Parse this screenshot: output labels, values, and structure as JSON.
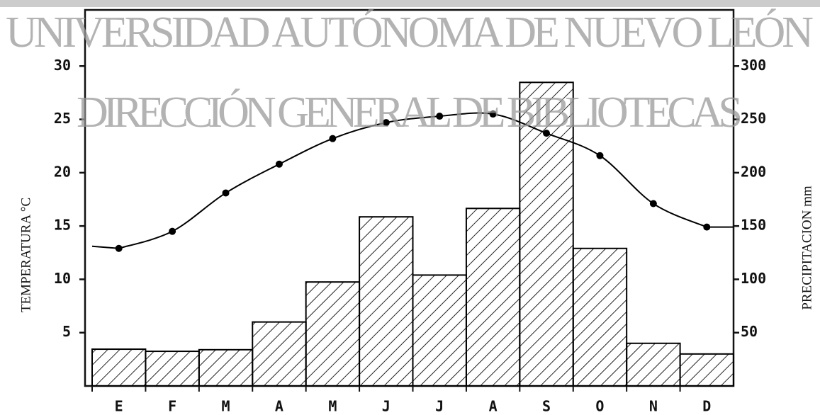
{
  "chart_data": {
    "type": "bar_line",
    "annotations": [
      "UNIVERSIDAD AUTÓNOMA DE NUEVO LEÓN",
      "DIRECCIÓN GENERAL DE BIBLIOTECAS"
    ],
    "y_label": "TEMPERATURA °C",
    "y2_label": "PRECIPITACION mm",
    "categories": [
      "E",
      "F",
      "M",
      "A",
      "M",
      "J",
      "J",
      "A",
      "S",
      "O",
      "N",
      "D"
    ],
    "series": [
      {
        "type": "bar",
        "axis": "y2",
        "color": "#000000",
        "values": [
          34.5,
          32.5,
          34,
          60,
          97.5,
          158.6,
          104,
          166.5,
          284.7,
          129,
          40,
          30
        ]
      },
      {
        "type": "line",
        "axis": "y",
        "color": "#000000",
        "values": [
          12.9,
          14.5,
          18.1,
          20.8,
          23.2,
          24.7,
          25.3,
          25.5,
          23.7,
          21.6,
          17.1,
          14.9
        ]
      }
    ],
    "ylim": [
      0,
      35
    ],
    "yticks": [
      5,
      10,
      15,
      20,
      25,
      30
    ],
    "y2lim": [
      0,
      350
    ],
    "y2ticks": [
      50,
      100,
      150,
      200,
      250,
      300
    ]
  }
}
